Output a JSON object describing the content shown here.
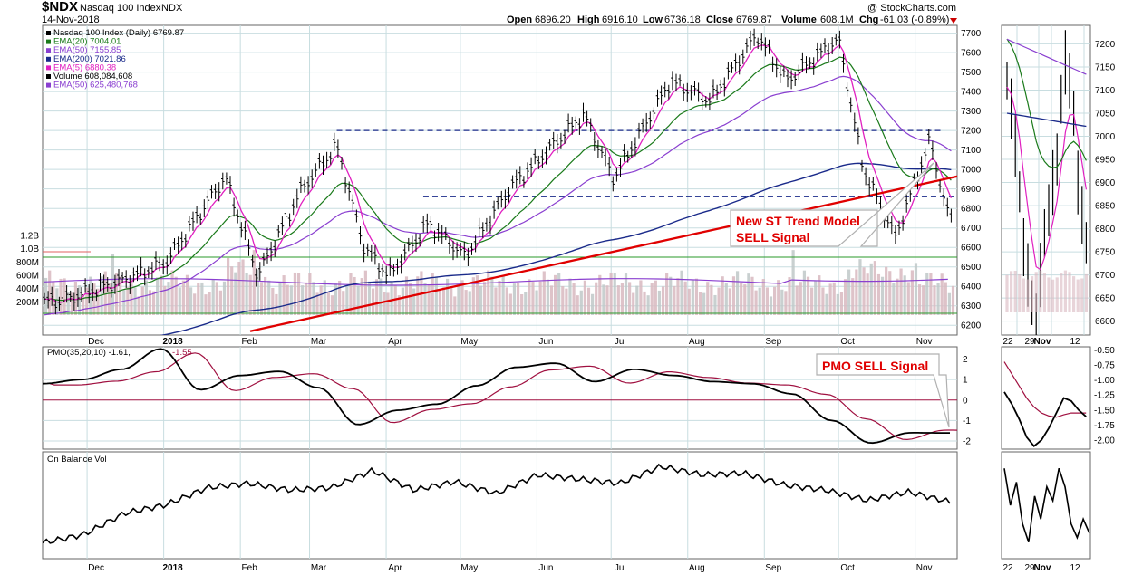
{
  "header": {
    "symbol": "$NDX",
    "name": "Nasdaq 100 Index",
    "exchange": "INDX",
    "date": "14-Nov-2018",
    "watermark": "@ StockCharts.com",
    "open_label": "Open",
    "open": "6896.20",
    "high_label": "High",
    "high": "6916.10",
    "low_label": "Low",
    "low": "6736.18",
    "close_label": "Close",
    "close": "6769.87",
    "volume_label": "Volume",
    "volume": "608.1M",
    "chg_label": "Chg",
    "chg": "-61.03 (-0.89%)"
  },
  "legend": [
    {
      "text": "Nasdaq 100 Index (Daily) 6769.87",
      "color": "#000000"
    },
    {
      "text": "EMA(20) 7004.01",
      "color": "#1a7a1a"
    },
    {
      "text": "EMA(50) 7155.85",
      "color": "#8a3fd0"
    },
    {
      "text": "EMA(200) 7021.86",
      "color": "#1a2a8a"
    },
    {
      "text": "EMA(5) 6880.38",
      "color": "#e020c0"
    },
    {
      "text": "Volume 608,084,608",
      "color": "#000000"
    },
    {
      "text": "EMA(50) 625,480,768",
      "color": "#8a3fd0"
    }
  ],
  "pmo_label": {
    "text": "PMO(35,20,10) -1.61,",
    "signal": "-1.55"
  },
  "obv_label": "On Balance Vol",
  "annotations": {
    "trend": [
      "New ST Trend Model",
      "SELL Signal"
    ],
    "pmo": "PMO SELL Signal"
  },
  "colors": {
    "price": "#000000",
    "ema20": "#1a7a1a",
    "ema50": "#8a3fd0",
    "ema200": "#1a2a8a",
    "ema5": "#e020c0",
    "volume": "#d8b8c0",
    "trendline": "#e00000",
    "support": "#1a2a8a",
    "signal": "#a01040",
    "grid": "#c8dde0",
    "annotation": "#e00000"
  },
  "chart_data": [
    {
      "type": "line",
      "title": "$NDX Nasdaq 100 Index INDX (Daily)",
      "x_ticks": [
        "Dec",
        "2018",
        "Feb",
        "Mar",
        "Apr",
        "May",
        "Jun",
        "Jul",
        "Aug",
        "Sep",
        "Oct",
        "Nov"
      ],
      "y_ticks": [
        6200,
        6300,
        6400,
        6500,
        6600,
        6700,
        6800,
        6900,
        7000,
        7100,
        7200,
        7300,
        7400,
        7500,
        7600,
        7700
      ],
      "ylim": [
        6150,
        7740
      ],
      "volume_ticks": [
        "200M",
        "400M",
        "600M",
        "800M",
        "1.0B",
        "1.2B"
      ],
      "approx_close": [
        {
          "x": "2017-11-20",
          "y": 6320
        },
        {
          "x": "2017-12-04",
          "y": 6380
        },
        {
          "x": "2017-12-18",
          "y": 6440
        },
        {
          "x": "2018-01-02",
          "y": 6520
        },
        {
          "x": "2018-01-16",
          "y": 6780
        },
        {
          "x": "2018-01-26",
          "y": 6960
        },
        {
          "x": "2018-02-08",
          "y": 6450
        },
        {
          "x": "2018-02-26",
          "y": 6900
        },
        {
          "x": "2018-03-12",
          "y": 7120
        },
        {
          "x": "2018-03-23",
          "y": 6600
        },
        {
          "x": "2018-04-02",
          "y": 6450
        },
        {
          "x": "2018-04-18",
          "y": 6720
        },
        {
          "x": "2018-05-03",
          "y": 6550
        },
        {
          "x": "2018-05-21",
          "y": 6900
        },
        {
          "x": "2018-06-20",
          "y": 7280
        },
        {
          "x": "2018-07-02",
          "y": 6950
        },
        {
          "x": "2018-07-25",
          "y": 7450
        },
        {
          "x": "2018-08-10",
          "y": 7350
        },
        {
          "x": "2018-08-29",
          "y": 7690
        },
        {
          "x": "2018-09-10",
          "y": 7450
        },
        {
          "x": "2018-10-01",
          "y": 7670
        },
        {
          "x": "2018-10-11",
          "y": 7000
        },
        {
          "x": "2018-10-24",
          "y": 6650
        },
        {
          "x": "2018-11-07",
          "y": 7150
        },
        {
          "x": "2018-11-14",
          "y": 6770
        }
      ],
      "support_levels": [
        7200,
        6860
      ],
      "green_level": 6550,
      "series": [
        {
          "name": "EMA(20)",
          "values": [
            7004.01
          ]
        },
        {
          "name": "EMA(50)",
          "values": [
            7155.85
          ]
        },
        {
          "name": "EMA(200)",
          "values": [
            7021.86
          ]
        },
        {
          "name": "EMA(5)",
          "values": [
            6880.38
          ]
        }
      ]
    },
    {
      "type": "line",
      "title": "PMO(35,20,10)",
      "y_ticks": [
        2,
        1,
        0,
        -1,
        -2
      ],
      "ylim": [
        -2.4,
        2.6
      ],
      "values": [
        0.8,
        1.0,
        1.5,
        2.5,
        0.5,
        1.2,
        1.4,
        0.6,
        -1.2,
        -0.5,
        -0.2,
        0.7,
        1.6,
        1.8,
        0.9,
        1.5,
        1.2,
        0.9,
        0.8,
        0.3,
        -1.0,
        -2.1,
        -1.6,
        -1.61
      ],
      "signal_values": [
        -1.55
      ]
    },
    {
      "type": "line",
      "title": "On Balance Vol",
      "values": [
        0.1,
        0.2,
        0.45,
        0.55,
        0.75,
        0.8,
        0.72,
        0.75,
        0.95,
        0.72,
        0.82,
        0.68,
        0.9,
        0.85,
        0.8,
        1.0,
        0.9,
        0.92,
        0.78,
        0.72,
        0.6,
        0.7,
        0.58
      ]
    },
    {
      "type": "line",
      "title": "Inset daily close",
      "x_ticks": [
        "22",
        "29",
        "Nov",
        "12"
      ],
      "y_ticks": [
        7200,
        7150,
        7100,
        7050,
        7000,
        6950,
        6900,
        6850,
        6800,
        6750,
        6700,
        6650,
        6600
      ],
      "ylim": [
        6570,
        7240
      ]
    },
    {
      "type": "line",
      "title": "Inset PMO",
      "y_ticks": [
        -0.5,
        -0.75,
        -1.0,
        -1.25,
        -1.5,
        -1.75,
        -2.0
      ],
      "ylim": [
        -2.15,
        -0.45
      ]
    }
  ]
}
